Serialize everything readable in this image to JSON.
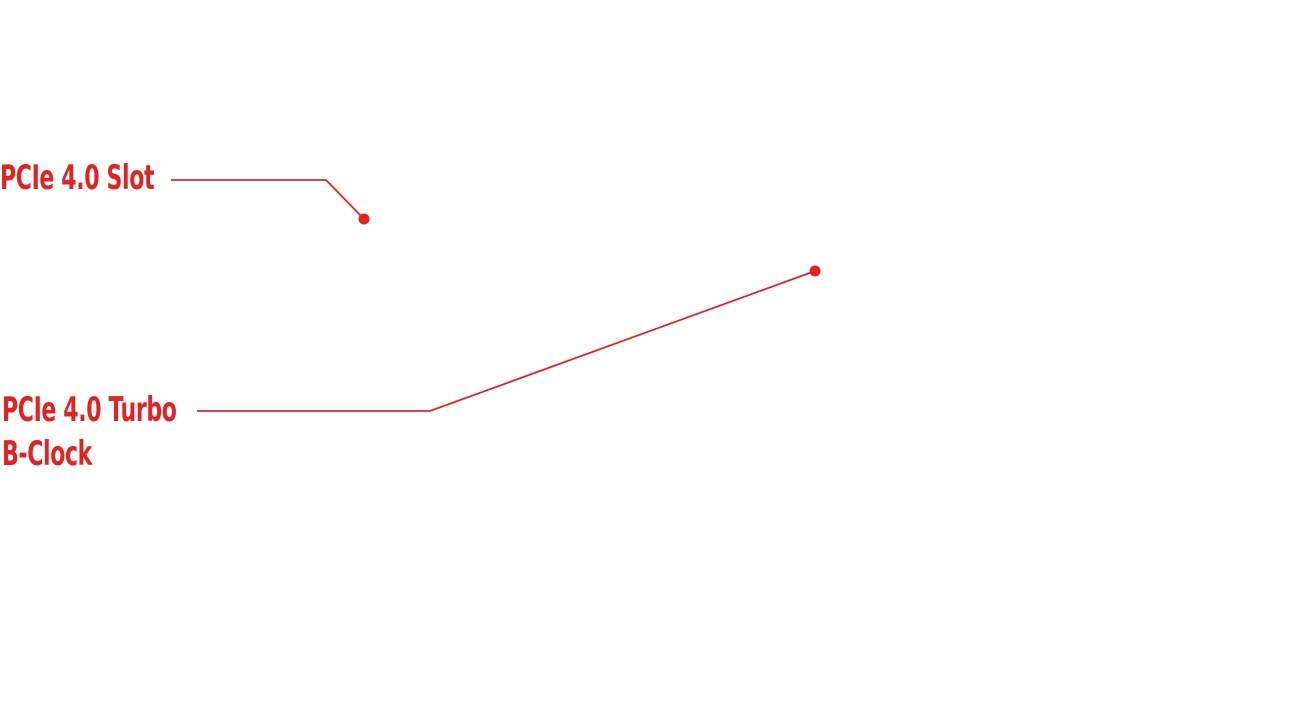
{
  "style": {
    "accent_color": "#e32222",
    "background_color": "#ffffff"
  },
  "callouts": [
    {
      "label_lines": [
        "PCIe 4.0 Slot"
      ]
    },
    {
      "label_lines": [
        "PCIe 4.0 Turbo",
        "B-Clock"
      ]
    }
  ]
}
